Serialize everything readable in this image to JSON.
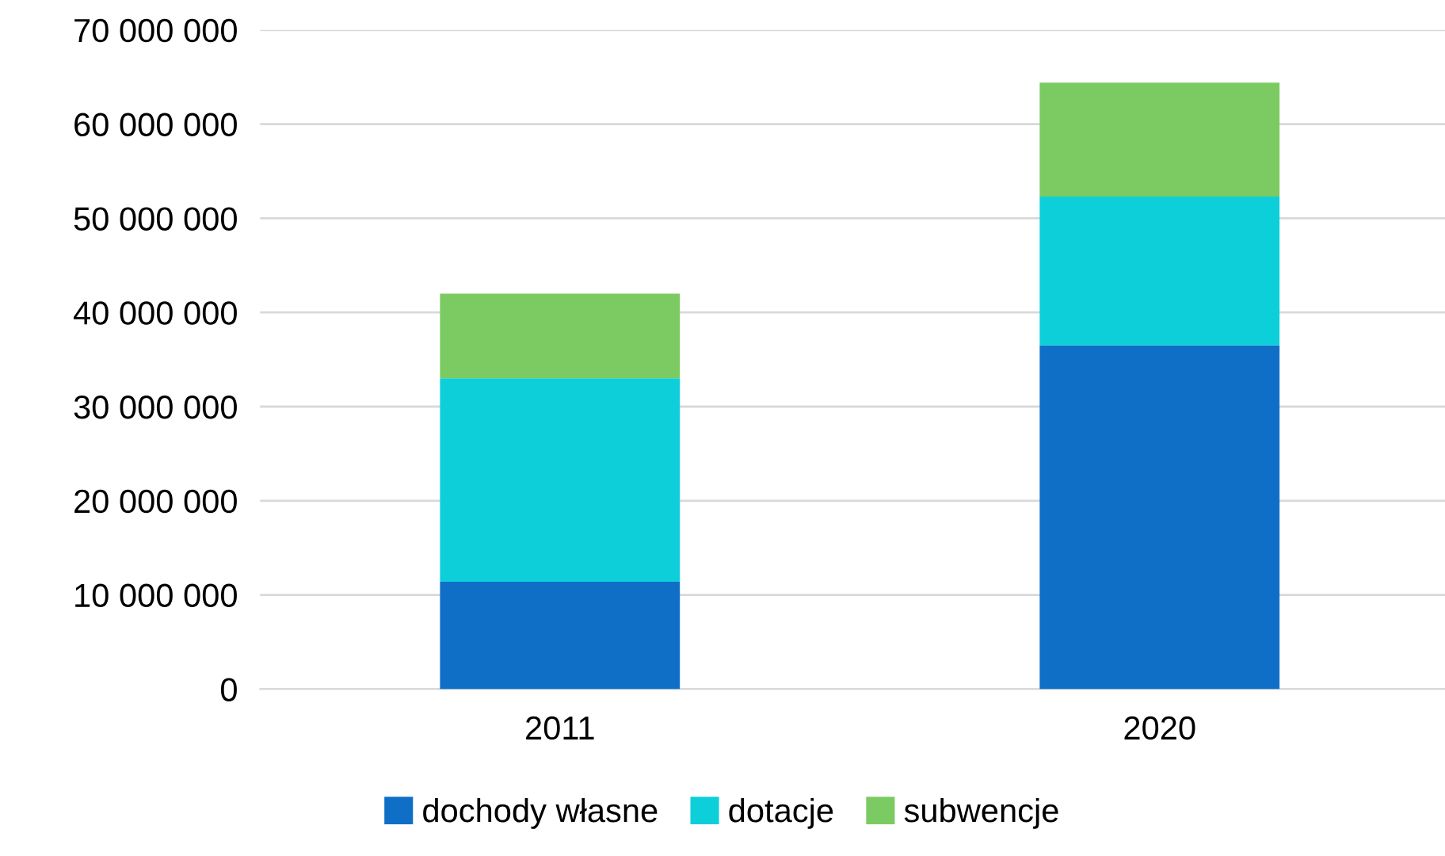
{
  "chart_data": {
    "type": "bar",
    "stacked": true,
    "categories": [
      "2011",
      "2020"
    ],
    "series": [
      {
        "name": "dochody własne",
        "color": "#0f6fc6",
        "values": [
          11400000,
          36500000
        ]
      },
      {
        "name": "dotacje",
        "color": "#0dcfda",
        "values": [
          21600000,
          15800000
        ]
      },
      {
        "name": "subwencje",
        "color": "#7cca62",
        "values": [
          9000000,
          12100000
        ]
      }
    ],
    "ylim": [
      0,
      70000000
    ],
    "yticks": [
      0,
      {
        "value": 10000000,
        "label": "10 000 000"
      },
      {
        "value": 20000000,
        "label": "20 000 000"
      },
      {
        "value": 30000000,
        "label": "30 000 000"
      },
      {
        "value": 40000000,
        "label": "40 000 000"
      },
      {
        "value": 50000000,
        "label": "50 000 000"
      },
      {
        "value": 60000000,
        "label": "60 000 000"
      },
      {
        "value": 70000000,
        "label": "70 000 000"
      }
    ],
    "grid": "y",
    "legend": "bottom"
  }
}
